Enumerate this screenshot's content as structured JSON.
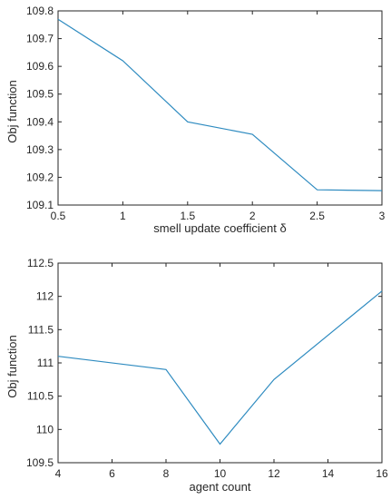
{
  "chart_data": [
    {
      "type": "line",
      "xlabel": "smell update coefficient δ",
      "ylabel": "Obj function",
      "xlim": [
        0.5,
        3
      ],
      "ylim": [
        109.1,
        109.8
      ],
      "xticks": [
        0.5,
        1,
        1.5,
        2,
        2.5,
        3
      ],
      "xtick_labels": [
        "0.5",
        "1",
        "1.5",
        "2",
        "2.5",
        "3"
      ],
      "yticks": [
        109.1,
        109.2,
        109.3,
        109.4,
        109.5,
        109.6,
        109.7,
        109.8
      ],
      "ytick_labels": [
        "109.1",
        "109.2",
        "109.3",
        "109.4",
        "109.5",
        "109.6",
        "109.7",
        "109.8"
      ],
      "grid": false,
      "series": [
        {
          "x": [
            0.5,
            1,
            1.5,
            2,
            2.5,
            3
          ],
          "y": [
            109.77,
            109.62,
            109.4,
            109.355,
            109.155,
            109.152
          ],
          "color": "#2e8bc0"
        }
      ]
    },
    {
      "type": "line",
      "xlabel": "agent count",
      "ylabel": "Obj function",
      "xlim": [
        4,
        16
      ],
      "ylim": [
        109.5,
        112.5
      ],
      "xticks": [
        4,
        6,
        8,
        10,
        12,
        14,
        16
      ],
      "xtick_labels": [
        "4",
        "6",
        "8",
        "10",
        "12",
        "14",
        "16"
      ],
      "yticks": [
        109.5,
        110,
        110.5,
        111,
        111.5,
        112,
        112.5
      ],
      "ytick_labels": [
        "109.5",
        "110",
        "110.5",
        "111",
        "111.5",
        "112",
        "112.5"
      ],
      "grid": false,
      "series": [
        {
          "x": [
            4,
            8,
            10,
            12,
            16
          ],
          "y": [
            111.1,
            110.9,
            109.78,
            110.75,
            112.08
          ],
          "color": "#2e8bc0"
        }
      ]
    }
  ]
}
